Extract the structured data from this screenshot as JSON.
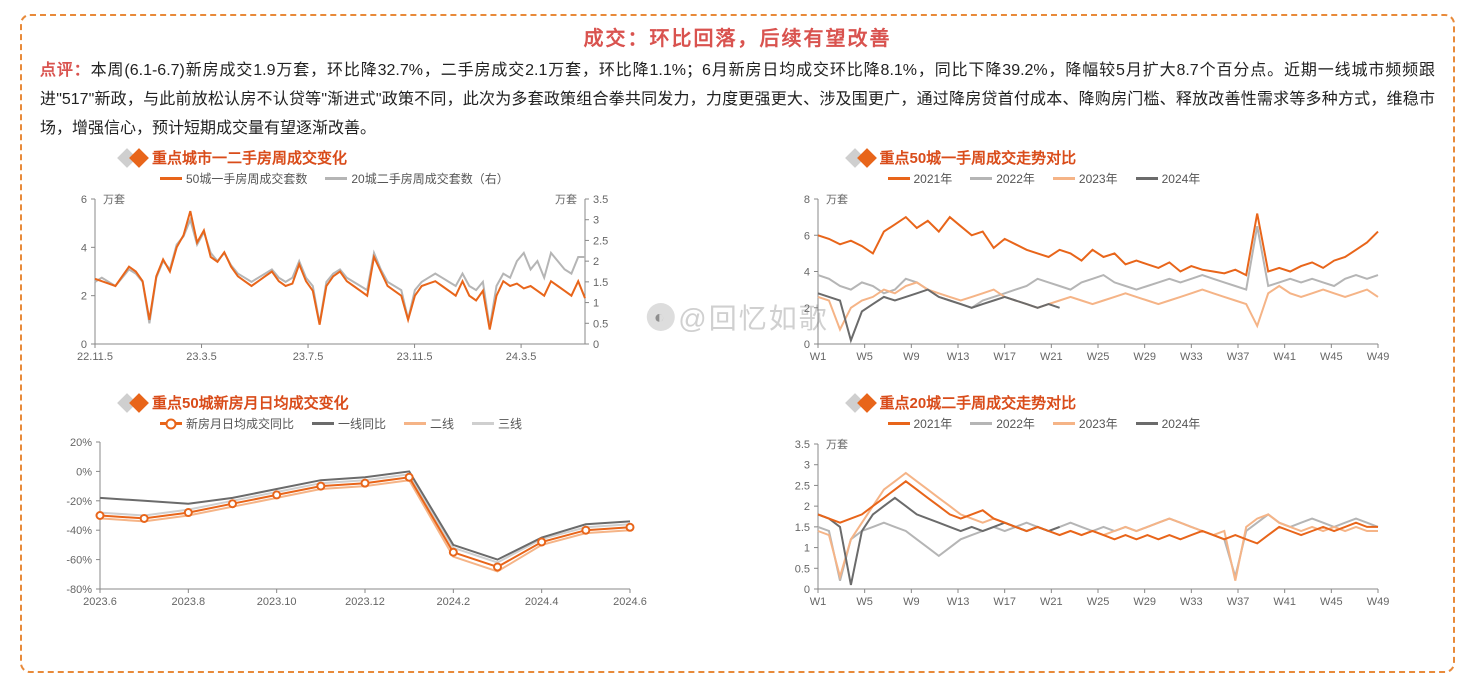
{
  "page": {
    "title": "成交：环比回落，后续有望改善",
    "comment_lead": "点评：",
    "comment_body": "本周(6.1-6.7)新房成交1.9万套，环比降32.7%，二手房成交2.1万套，环比降1.1%；6月新房日均成交环比降8.1%，同比下降39.2%，降幅较5月扩大8.7个百分点。近期一线城市频频跟进\"517\"新政，与此前放松认房不认贷等\"渐进式\"政策不同，此次为多套政策组合拳共同发力，力度更强更大、涉及围更广，通过降房贷首付成本、降购房门槛、释放改善性需求等多种方式，维稳市场，增强信心，预计短期成交量有望逐渐改善。",
    "watermark": "@回忆如歌"
  },
  "colors": {
    "orange": "#e8651a",
    "orange_light": "#f5b487",
    "gray": "#b5b5b5",
    "gray_dark": "#6b6b6b",
    "axis": "#888888",
    "text": "#444444"
  },
  "chart1": {
    "title": "重点城市一二手房周成交变化",
    "unit_left": "万套",
    "unit_right": "万套",
    "legend": [
      {
        "label": "50城一手房周成交套数",
        "color": "#e8651a"
      },
      {
        "label": "20城二手房周成交套数（右）",
        "color": "#b5b5b5"
      }
    ],
    "x_ticks": [
      "22.11.5",
      "23.3.5",
      "23.7.5",
      "23.11.5",
      "24.3.5"
    ],
    "y_left": {
      "min": 0,
      "max": 6,
      "step": 2
    },
    "y_right": {
      "min": 0,
      "max": 3.5,
      "step": 0.5
    },
    "series_orange": [
      2.7,
      2.6,
      2.5,
      2.4,
      2.8,
      3.2,
      3.0,
      2.6,
      1.0,
      2.8,
      3.5,
      3.0,
      4.0,
      4.5,
      5.5,
      4.2,
      4.7,
      3.6,
      3.4,
      3.8,
      3.2,
      2.8,
      2.6,
      2.4,
      2.6,
      2.8,
      3.0,
      2.6,
      2.4,
      2.5,
      3.3,
      2.6,
      2.2,
      0.8,
      2.4,
      2.8,
      3.0,
      2.6,
      2.4,
      2.2,
      2.0,
      3.6,
      3.0,
      2.4,
      2.2,
      2.0,
      1.0,
      2.0,
      2.4,
      2.5,
      2.6,
      2.4,
      2.2,
      2.0,
      2.6,
      2.0,
      1.8,
      2.2,
      0.6,
      2.0,
      2.6,
      2.4,
      2.5,
      2.3,
      2.4,
      2.2,
      2.0,
      2.6,
      2.4,
      2.2,
      2.0,
      2.6,
      1.9
    ],
    "series_gray": [
      1.5,
      1.6,
      1.5,
      1.4,
      1.6,
      1.8,
      1.7,
      1.5,
      0.5,
      1.6,
      2.0,
      1.8,
      2.4,
      2.6,
      3.0,
      2.4,
      2.7,
      2.2,
      2.0,
      2.2,
      1.9,
      1.7,
      1.6,
      1.5,
      1.6,
      1.7,
      1.8,
      1.6,
      1.5,
      1.6,
      2.0,
      1.6,
      1.4,
      0.5,
      1.5,
      1.7,
      1.8,
      1.6,
      1.5,
      1.4,
      1.3,
      2.2,
      1.8,
      1.5,
      1.4,
      1.3,
      0.6,
      1.3,
      1.5,
      1.6,
      1.7,
      1.6,
      1.5,
      1.4,
      1.7,
      1.4,
      1.3,
      1.5,
      0.4,
      1.4,
      1.7,
      1.6,
      2.0,
      2.2,
      1.8,
      2.0,
      1.6,
      2.2,
      2.0,
      1.8,
      1.7,
      2.1,
      2.1
    ]
  },
  "chart2": {
    "title": "重点50城一手周成交走势对比",
    "unit": "万套",
    "legend": [
      {
        "label": "2021年",
        "color": "#e8651a"
      },
      {
        "label": "2022年",
        "color": "#b5b5b5"
      },
      {
        "label": "2023年",
        "color": "#f5b487"
      },
      {
        "label": "2024年",
        "color": "#6b6b6b"
      }
    ],
    "x_ticks": [
      "W1",
      "W5",
      "W9",
      "W13",
      "W17",
      "W21",
      "W25",
      "W29",
      "W33",
      "W37",
      "W41",
      "W45",
      "W49"
    ],
    "y": {
      "min": 0,
      "max": 8,
      "step": 2
    },
    "series": {
      "2021": [
        6.0,
        5.8,
        5.5,
        5.7,
        5.4,
        5.0,
        6.2,
        6.6,
        7.0,
        6.4,
        6.8,
        6.2,
        7.0,
        6.5,
        6.0,
        6.2,
        5.3,
        5.8,
        5.5,
        5.2,
        5.0,
        4.8,
        5.2,
        5.0,
        4.6,
        5.2,
        4.8,
        5.0,
        4.4,
        4.6,
        4.4,
        4.2,
        4.5,
        4.0,
        4.3,
        4.1,
        4.0,
        3.9,
        4.1,
        3.8,
        7.2,
        4.0,
        4.2,
        4.0,
        4.3,
        4.5,
        4.2,
        4.6,
        4.8,
        5.2,
        5.6,
        6.2
      ],
      "2022": [
        3.8,
        3.6,
        3.2,
        3.0,
        3.4,
        3.2,
        2.8,
        3.0,
        3.6,
        3.4,
        3.0,
        2.6,
        2.4,
        2.2,
        2.0,
        2.4,
        2.6,
        2.8,
        3.0,
        3.2,
        3.6,
        3.4,
        3.2,
        3.0,
        3.4,
        3.6,
        3.8,
        3.4,
        3.2,
        3.0,
        3.2,
        3.4,
        3.6,
        3.4,
        3.6,
        3.8,
        3.6,
        3.4,
        3.2,
        3.0,
        6.5,
        3.2,
        3.4,
        3.6,
        3.4,
        3.6,
        3.4,
        3.2,
        3.6,
        3.8,
        3.6,
        3.8
      ],
      "2023": [
        2.6,
        2.4,
        0.8,
        2.0,
        2.4,
        2.6,
        3.0,
        2.8,
        3.2,
        3.4,
        3.0,
        2.8,
        2.6,
        2.4,
        2.6,
        2.8,
        3.0,
        2.6,
        2.4,
        2.2,
        2.0,
        2.2,
        2.4,
        2.6,
        2.4,
        2.2,
        2.4,
        2.6,
        2.8,
        2.6,
        2.4,
        2.2,
        2.4,
        2.6,
        2.8,
        3.0,
        2.8,
        2.6,
        2.4,
        2.2,
        1.0,
        2.8,
        3.2,
        2.8,
        2.6,
        2.8,
        3.0,
        2.8,
        2.6,
        2.8,
        3.0,
        2.6
      ],
      "2024": [
        2.8,
        2.6,
        2.4,
        0.2,
        1.8,
        2.2,
        2.6,
        2.4,
        2.6,
        2.8,
        3.0,
        2.6,
        2.4,
        2.2,
        2.0,
        2.2,
        2.4,
        2.6,
        2.4,
        2.2,
        2.0,
        2.2,
        2.0
      ]
    }
  },
  "chart3": {
    "title": "重点50城新房月日均成交变化",
    "legend": [
      {
        "label": "新房月日均成交同比",
        "color": "#e8651a",
        "marker": true
      },
      {
        "label": "一线同比",
        "color": "#6b6b6b"
      },
      {
        "label": "二线",
        "color": "#f5b487"
      },
      {
        "label": "三线",
        "color": "#cfcfcf"
      }
    ],
    "x_ticks": [
      "2023.6",
      "2023.8",
      "2023.10",
      "2023.12",
      "2024.2",
      "2024.4",
      "2024.6"
    ],
    "y": {
      "min": -80,
      "max": 20,
      "step": 20,
      "suffix": "%"
    },
    "series": {
      "main": [
        -30,
        -32,
        -28,
        -22,
        -16,
        -10,
        -8,
        -4,
        -55,
        -65,
        -48,
        -40,
        -38
      ],
      "tier1": [
        -18,
        -20,
        -22,
        -18,
        -12,
        -6,
        -4,
        0,
        -50,
        -60,
        -45,
        -36,
        -34
      ],
      "tier2": [
        -32,
        -34,
        -30,
        -24,
        -18,
        -12,
        -10,
        -6,
        -58,
        -68,
        -50,
        -42,
        -40
      ],
      "tier3": [
        -28,
        -30,
        -26,
        -20,
        -14,
        -8,
        -6,
        -2,
        -52,
        -62,
        -46,
        -38,
        -36
      ]
    }
  },
  "chart4": {
    "title": "重点20城二手周成交走势对比",
    "unit": "万套",
    "legend": [
      {
        "label": "2021年",
        "color": "#e8651a"
      },
      {
        "label": "2022年",
        "color": "#b5b5b5"
      },
      {
        "label": "2023年",
        "color": "#f5b487"
      },
      {
        "label": "2024年",
        "color": "#6b6b6b"
      }
    ],
    "x_ticks": [
      "W1",
      "W5",
      "W9",
      "W13",
      "W17",
      "W21",
      "W25",
      "W29",
      "W33",
      "W37",
      "W41",
      "W45",
      "W49"
    ],
    "y": {
      "min": 0,
      "max": 3.5,
      "step": 0.5
    },
    "series": {
      "2021": [
        1.8,
        1.7,
        1.6,
        1.7,
        1.8,
        2.0,
        2.2,
        2.4,
        2.6,
        2.4,
        2.2,
        2.0,
        1.8,
        1.7,
        1.8,
        1.9,
        1.7,
        1.6,
        1.5,
        1.4,
        1.5,
        1.4,
        1.3,
        1.4,
        1.3,
        1.4,
        1.3,
        1.2,
        1.3,
        1.2,
        1.3,
        1.2,
        1.3,
        1.2,
        1.3,
        1.4,
        1.3,
        1.2,
        1.3,
        1.2,
        1.1,
        1.3,
        1.5,
        1.4,
        1.3,
        1.4,
        1.5,
        1.4,
        1.5,
        1.6,
        1.5,
        1.5
      ],
      "2022": [
        1.5,
        1.4,
        0.2,
        1.2,
        1.4,
        1.5,
        1.6,
        1.5,
        1.4,
        1.2,
        1.0,
        0.8,
        1.0,
        1.2,
        1.3,
        1.4,
        1.5,
        1.4,
        1.5,
        1.6,
        1.5,
        1.4,
        1.5,
        1.6,
        1.5,
        1.4,
        1.5,
        1.4,
        1.5,
        1.4,
        1.5,
        1.6,
        1.7,
        1.6,
        1.5,
        1.4,
        1.3,
        1.2,
        0.3,
        1.4,
        1.6,
        1.8,
        1.6,
        1.5,
        1.6,
        1.7,
        1.6,
        1.5,
        1.6,
        1.7,
        1.6,
        1.5
      ],
      "2023": [
        1.4,
        1.3,
        0.3,
        1.2,
        1.6,
        2.0,
        2.4,
        2.6,
        2.8,
        2.6,
        2.4,
        2.2,
        2.0,
        1.8,
        1.7,
        1.6,
        1.7,
        1.6,
        1.5,
        1.4,
        1.5,
        1.4,
        1.3,
        1.4,
        1.3,
        1.4,
        1.3,
        1.4,
        1.5,
        1.4,
        1.5,
        1.6,
        1.7,
        1.6,
        1.5,
        1.4,
        1.3,
        1.4,
        0.2,
        1.5,
        1.7,
        1.8,
        1.6,
        1.5,
        1.4,
        1.5,
        1.4,
        1.5,
        1.4,
        1.5,
        1.4,
        1.4
      ],
      "2024": [
        1.8,
        1.7,
        1.5,
        0.1,
        1.4,
        1.8,
        2.0,
        2.2,
        2.0,
        1.8,
        1.7,
        1.6,
        1.5,
        1.4,
        1.5,
        1.4,
        1.5,
        1.6,
        1.5,
        1.4,
        1.5,
        1.4,
        1.5
      ]
    }
  }
}
